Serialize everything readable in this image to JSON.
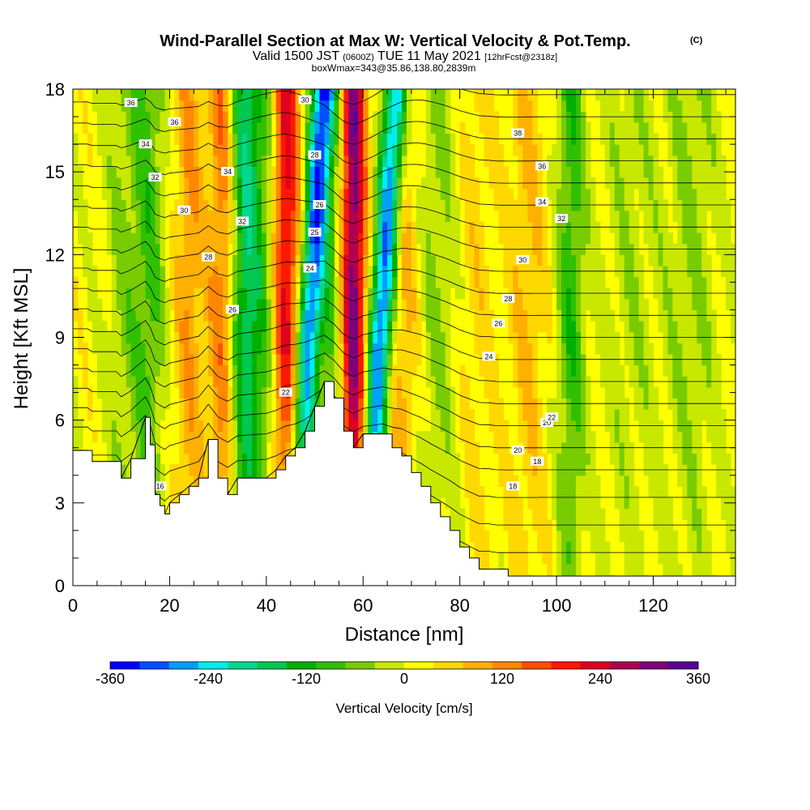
{
  "title": "Wind-Parallel Section at Max W: Vertical Velocity & Pot.Temp.",
  "title_mark": "(C)",
  "subtitle_a": "Valid 1500 JST",
  "subtitle_b": "(0600Z)",
  "subtitle_c": "TUE 11 May 2021",
  "subtitle_d": "[12hrFcst@2318z]",
  "subtitle2": "boxWmax=343@35.86,138.80,2839m",
  "chart_data": {
    "type": "heatmap",
    "xlabel": "Distance [nm]",
    "ylabel": "Height [Kft MSL]",
    "xlim": [
      0,
      137
    ],
    "ylim": [
      0,
      18
    ],
    "x_ticks": [
      "0",
      "20",
      "40",
      "60",
      "80",
      "100",
      "120"
    ],
    "y_ticks": [
      "0",
      "3",
      "6",
      "9",
      "12",
      "15",
      "18"
    ],
    "colorbar": {
      "label": "Vertical Velocity [cm/s]",
      "ticks": [
        "-360",
        "-240",
        "-120",
        "0",
        "120",
        "240",
        "360"
      ],
      "range": [
        -360,
        360
      ],
      "colors": [
        "#0000ff",
        "#0050ff",
        "#00a0ff",
        "#00eeee",
        "#00d890",
        "#00c850",
        "#00b000",
        "#30c000",
        "#78cc00",
        "#c8e800",
        "#ffff00",
        "#ffd800",
        "#ffb000",
        "#ff8800",
        "#ff5000",
        "#ff1800",
        "#e00020",
        "#b00050",
        "#80007a",
        "#5a0098"
      ]
    },
    "velocity_features": [
      {
        "center_nm": 11,
        "width_nm": 4,
        "cm_s": -60
      },
      {
        "center_nm": 16,
        "width_nm": 3,
        "cm_s": -90
      },
      {
        "center_nm": 24,
        "width_nm": 3,
        "cm_s": 90
      },
      {
        "center_nm": 31,
        "width_nm": 3,
        "cm_s": 130
      },
      {
        "center_nm": 35,
        "width_nm": 3,
        "cm_s": -150
      },
      {
        "center_nm": 39,
        "width_nm": 4,
        "cm_s": -110
      },
      {
        "center_nm": 44,
        "width_nm": 3,
        "cm_s": 230
      },
      {
        "center_nm": 49,
        "width_nm": 2.5,
        "cm_s": -300
      },
      {
        "center_nm": 53,
        "width_nm": 3,
        "cm_s": -80
      },
      {
        "center_nm": 58,
        "width_nm": 2.5,
        "cm_s": 300
      },
      {
        "center_nm": 64,
        "width_nm": 2.5,
        "cm_s": -340
      },
      {
        "center_nm": 68,
        "width_nm": 4,
        "cm_s": 90
      },
      {
        "center_nm": 75,
        "width_nm": 5,
        "cm_s": -60
      },
      {
        "center_nm": 83,
        "width_nm": 4,
        "cm_s": 40
      },
      {
        "center_nm": 94,
        "width_nm": 4,
        "cm_s": 60
      },
      {
        "center_nm": 103,
        "width_nm": 3,
        "cm_s": -110
      },
      {
        "center_nm": 115,
        "width_nm": 6,
        "cm_s": -40
      },
      {
        "center_nm": 128,
        "width_nm": 6,
        "cm_s": -50
      }
    ],
    "terrain_kft": [
      [
        0,
        4.9
      ],
      [
        3,
        4.9
      ],
      [
        4,
        4.5
      ],
      [
        9,
        4.5
      ],
      [
        10,
        3.9
      ],
      [
        12,
        4.6
      ],
      [
        15,
        6.1
      ],
      [
        16,
        5.1
      ],
      [
        17,
        3.3
      ],
      [
        18,
        2.9
      ],
      [
        19,
        2.6
      ],
      [
        20,
        3.0
      ],
      [
        22,
        3.3
      ],
      [
        24,
        3.6
      ],
      [
        26,
        3.9
      ],
      [
        28,
        5.3
      ],
      [
        30,
        3.9
      ],
      [
        32,
        3.3
      ],
      [
        34,
        3.9
      ],
      [
        40,
        3.9
      ],
      [
        42,
        4.2
      ],
      [
        44,
        4.7
      ],
      [
        46,
        5.0
      ],
      [
        48,
        5.6
      ],
      [
        50,
        6.5
      ],
      [
        52,
        7.4
      ],
      [
        54,
        6.8
      ],
      [
        56,
        5.6
      ],
      [
        58,
        5.0
      ],
      [
        60,
        5.5
      ],
      [
        64,
        5.5
      ],
      [
        66,
        5.0
      ],
      [
        68,
        4.7
      ],
      [
        70,
        4.1
      ],
      [
        72,
        3.6
      ],
      [
        74,
        3.0
      ],
      [
        76,
        2.5
      ],
      [
        78,
        2.0
      ],
      [
        80,
        1.4
      ],
      [
        82,
        1.0
      ],
      [
        84,
        0.6
      ],
      [
        86,
        0.6
      ],
      [
        90,
        0.35
      ],
      [
        137,
        0.35
      ]
    ],
    "theta_contour_labels": [
      "36",
      "34",
      "32",
      "30",
      "28",
      "26",
      "25",
      "24",
      "22",
      "20",
      "18",
      "36",
      "34",
      "32",
      "30",
      "28",
      "26",
      "38",
      "36",
      "34",
      "32",
      "30",
      "28",
      "26",
      "24",
      "22",
      "20",
      "18",
      "16"
    ]
  }
}
